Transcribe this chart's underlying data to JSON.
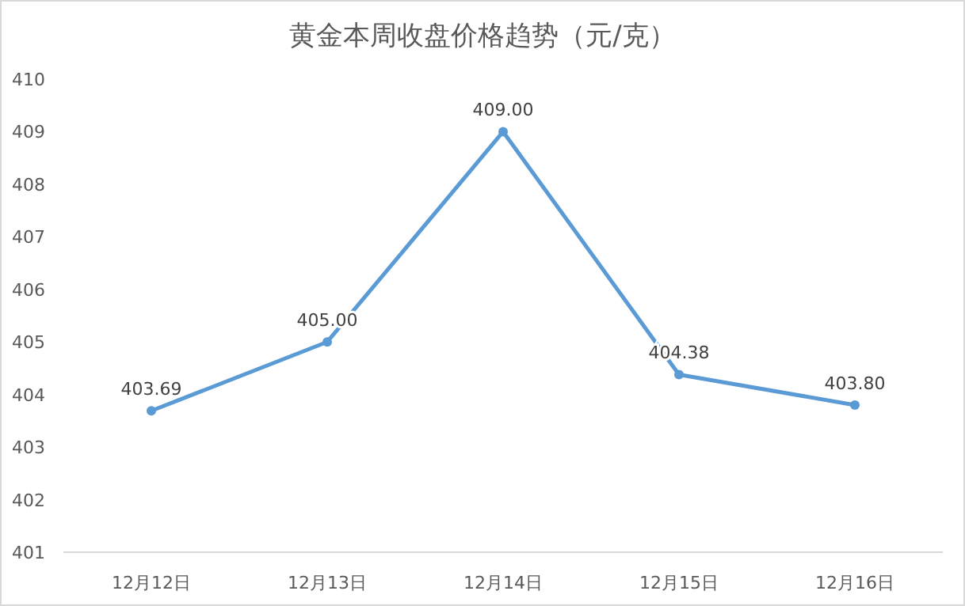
{
  "chart_data": {
    "type": "line",
    "title": "黄金本周收盘价格趋势（元/克）",
    "categories": [
      "12月12日",
      "12月13日",
      "12月14日",
      "12月15日",
      "12月16日"
    ],
    "series": [
      {
        "color": "#5b9bd5",
        "values": [
          403.69,
          405.0,
          409.0,
          404.38,
          403.8
        ],
        "value_labels": [
          "403.69",
          "405.00",
          "409.00",
          "404.38",
          "403.80"
        ]
      }
    ],
    "ylim": [
      401,
      410
    ],
    "yticks": [
      401,
      402,
      403,
      404,
      405,
      406,
      407,
      408,
      409,
      410
    ],
    "grid": false,
    "marker": "circle",
    "line_style": "solid"
  }
}
